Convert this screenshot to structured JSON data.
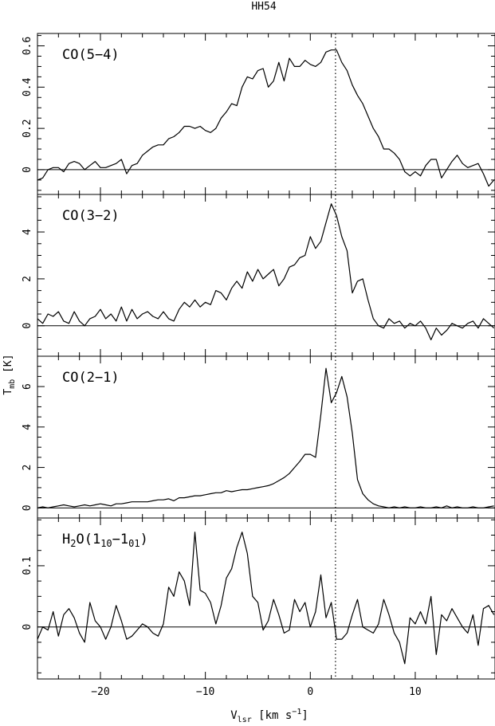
{
  "figure": {
    "title": "HH54",
    "xlabel": "V_lsr [km s^-1]",
    "ylabel": "T_mb [K]",
    "vline": 2.4
  },
  "chart_data": [
    {
      "type": "line",
      "label": "CO(5-4)",
      "xlim": [
        -26,
        17.6
      ],
      "ylim": [
        -0.12,
        0.66
      ],
      "yticks": [
        0,
        0.2,
        0.4,
        0.6
      ],
      "ytick_labels": [
        "0",
        "0.2",
        "0.4",
        "0.6"
      ],
      "x": [
        -26,
        -25.5,
        -25,
        -24.5,
        -24,
        -23.5,
        -23,
        -22.5,
        -22,
        -21.5,
        -21,
        -20.5,
        -20,
        -19.5,
        -19,
        -18.5,
        -18,
        -17.5,
        -17,
        -16.5,
        -16,
        -15.5,
        -15,
        -14.5,
        -14,
        -13.5,
        -13,
        -12.5,
        -12,
        -11.5,
        -11,
        -10.5,
        -10,
        -9.5,
        -9,
        -8.5,
        -8,
        -7.5,
        -7,
        -6.5,
        -6,
        -5.5,
        -5,
        -4.5,
        -4,
        -3.5,
        -3,
        -2.5,
        -2,
        -1.5,
        -1,
        -0.5,
        0,
        0.5,
        1,
        1.5,
        2,
        2.5,
        3,
        3.5,
        4,
        4.5,
        5,
        5.5,
        6,
        6.5,
        7,
        7.5,
        8,
        8.5,
        9,
        9.5,
        10,
        10.5,
        11,
        11.5,
        12,
        12.5,
        13,
        13.5,
        14,
        14.5,
        15,
        15.5,
        16,
        16.5,
        17,
        17.5
      ],
      "values": [
        -0.05,
        -0.04,
        0.0,
        0.01,
        0.01,
        -0.01,
        0.03,
        0.04,
        0.03,
        0.0,
        0.02,
        0.04,
        0.01,
        0.01,
        0.02,
        0.03,
        0.05,
        -0.02,
        0.02,
        0.03,
        0.07,
        0.09,
        0.11,
        0.12,
        0.12,
        0.15,
        0.16,
        0.18,
        0.21,
        0.21,
        0.2,
        0.21,
        0.19,
        0.18,
        0.2,
        0.25,
        0.28,
        0.32,
        0.31,
        0.4,
        0.45,
        0.44,
        0.48,
        0.49,
        0.4,
        0.43,
        0.52,
        0.43,
        0.54,
        0.5,
        0.5,
        0.53,
        0.51,
        0.5,
        0.52,
        0.57,
        0.58,
        0.58,
        0.52,
        0.48,
        0.41,
        0.36,
        0.32,
        0.26,
        0.2,
        0.16,
        0.1,
        0.1,
        0.08,
        0.05,
        -0.01,
        -0.03,
        -0.01,
        -0.03,
        0.02,
        0.05,
        0.05,
        -0.04,
        0.0,
        0.04,
        0.07,
        0.03,
        0.01,
        0.02,
        0.03,
        -0.02,
        -0.08,
        -0.05
      ]
    },
    {
      "type": "line",
      "label": "CO(3-2)",
      "xlim": [
        -26,
        17.6
      ],
      "ylim": [
        -1.3,
        5.6
      ],
      "yticks": [
        0,
        2,
        4
      ],
      "ytick_labels": [
        "0",
        "2",
        "4"
      ],
      "x": [
        -26,
        -25.5,
        -25,
        -24.5,
        -24,
        -23.5,
        -23,
        -22.5,
        -22,
        -21.5,
        -21,
        -20.5,
        -20,
        -19.5,
        -19,
        -18.5,
        -18,
        -17.5,
        -17,
        -16.5,
        -16,
        -15.5,
        -15,
        -14.5,
        -14,
        -13.5,
        -13,
        -12.5,
        -12,
        -11.5,
        -11,
        -10.5,
        -10,
        -9.5,
        -9,
        -8.5,
        -8,
        -7.5,
        -7,
        -6.5,
        -6,
        -5.5,
        -5,
        -4.5,
        -4,
        -3.5,
        -3,
        -2.5,
        -2,
        -1.5,
        -1,
        -0.5,
        0,
        0.5,
        1,
        1.5,
        2,
        2.5,
        3,
        3.5,
        4,
        4.5,
        5,
        5.5,
        6,
        6.5,
        7,
        7.5,
        8,
        8.5,
        9,
        9.5,
        10,
        10.5,
        11,
        11.5,
        12,
        12.5,
        13,
        13.5,
        14,
        14.5,
        15,
        15.5,
        16,
        16.5,
        17,
        17.5
      ],
      "values": [
        0.3,
        0.1,
        0.5,
        0.4,
        0.6,
        0.2,
        0.1,
        0.6,
        0.2,
        0.0,
        0.3,
        0.4,
        0.7,
        0.3,
        0.5,
        0.2,
        0.8,
        0.2,
        0.7,
        0.3,
        0.5,
        0.6,
        0.4,
        0.3,
        0.6,
        0.3,
        0.2,
        0.7,
        1.0,
        0.8,
        1.1,
        0.8,
        1.0,
        0.9,
        1.5,
        1.4,
        1.1,
        1.6,
        1.9,
        1.6,
        2.3,
        1.9,
        2.4,
        2.0,
        2.2,
        2.4,
        1.7,
        2.0,
        2.5,
        2.6,
        2.9,
        3.0,
        3.8,
        3.3,
        3.6,
        4.4,
        5.2,
        4.7,
        3.8,
        3.2,
        1.4,
        1.9,
        2.0,
        1.1,
        0.3,
        0.0,
        -0.1,
        0.3,
        0.1,
        0.2,
        -0.1,
        0.1,
        0.0,
        0.2,
        -0.1,
        -0.6,
        -0.1,
        -0.4,
        -0.2,
        0.1,
        0.0,
        -0.1,
        0.1,
        0.2,
        -0.1,
        0.3,
        0.1,
        -0.1
      ]
    },
    {
      "type": "line",
      "label": "CO(2-1)",
      "xlim": [
        -26,
        17.6
      ],
      "ylim": [
        -0.5,
        7.5
      ],
      "yticks": [
        0,
        2,
        4,
        6
      ],
      "ytick_labels": [
        "0",
        "2",
        "4",
        "6"
      ],
      "x": [
        -26,
        -25.5,
        -25,
        -24.5,
        -24,
        -23.5,
        -23,
        -22.5,
        -22,
        -21.5,
        -21,
        -20.5,
        -20,
        -19.5,
        -19,
        -18.5,
        -18,
        -17.5,
        -17,
        -16.5,
        -16,
        -15.5,
        -15,
        -14.5,
        -14,
        -13.5,
        -13,
        -12.5,
        -12,
        -11.5,
        -11,
        -10.5,
        -10,
        -9.5,
        -9,
        -8.5,
        -8,
        -7.5,
        -7,
        -6.5,
        -6,
        -5.5,
        -5,
        -4.5,
        -4,
        -3.5,
        -3,
        -2.5,
        -2,
        -1.5,
        -1,
        -0.5,
        0,
        0.5,
        1,
        1.5,
        2,
        2.5,
        3,
        3.5,
        4,
        4.5,
        5,
        5.5,
        6,
        6.5,
        7,
        7.5,
        8,
        8.5,
        9,
        9.5,
        10,
        10.5,
        11,
        11.5,
        12,
        12.5,
        13,
        13.5,
        14,
        14.5,
        15,
        15.5,
        16,
        16.5,
        17,
        17.5
      ],
      "values": [
        0.0,
        0.05,
        0.0,
        0.05,
        0.1,
        0.15,
        0.1,
        0.05,
        0.1,
        0.15,
        0.1,
        0.15,
        0.2,
        0.15,
        0.1,
        0.2,
        0.2,
        0.25,
        0.3,
        0.3,
        0.3,
        0.3,
        0.35,
        0.4,
        0.4,
        0.45,
        0.35,
        0.5,
        0.5,
        0.55,
        0.6,
        0.6,
        0.65,
        0.7,
        0.75,
        0.75,
        0.85,
        0.8,
        0.85,
        0.9,
        0.9,
        0.95,
        1.0,
        1.05,
        1.1,
        1.2,
        1.35,
        1.5,
        1.7,
        2.0,
        2.3,
        2.65,
        2.65,
        2.5,
        4.6,
        6.9,
        5.2,
        5.7,
        6.5,
        5.5,
        3.7,
        1.4,
        0.7,
        0.4,
        0.2,
        0.1,
        0.05,
        0.0,
        0.05,
        0.0,
        0.05,
        0.0,
        0.0,
        0.05,
        0.0,
        0.0,
        0.05,
        0.0,
        0.1,
        0.0,
        0.05,
        0.0,
        0.0,
        0.05,
        0.0,
        0.0,
        0.05,
        0.1
      ]
    },
    {
      "type": "line",
      "label": "H2O(110-101)",
      "xlim": [
        -26,
        17.6
      ],
      "ylim": [
        -0.085,
        0.178
      ],
      "yticks": [
        0,
        0.1
      ],
      "ytick_labels": [
        "0",
        "0.1"
      ],
      "x": [
        -26,
        -25.5,
        -25,
        -24.5,
        -24,
        -23.5,
        -23,
        -22.5,
        -22,
        -21.5,
        -21,
        -20.5,
        -20,
        -19.5,
        -19,
        -18.5,
        -18,
        -17.5,
        -17,
        -16.5,
        -16,
        -15.5,
        -15,
        -14.5,
        -14,
        -13.5,
        -13,
        -12.5,
        -12,
        -11.5,
        -11,
        -10.5,
        -10,
        -9.5,
        -9,
        -8.5,
        -8,
        -7.5,
        -7,
        -6.5,
        -6,
        -5.5,
        -5,
        -4.5,
        -4,
        -3.5,
        -3,
        -2.5,
        -2,
        -1.5,
        -1,
        -0.5,
        0,
        0.5,
        1,
        1.5,
        2,
        2.5,
        3,
        3.5,
        4,
        4.5,
        5,
        5.5,
        6,
        6.5,
        7,
        7.5,
        8,
        8.5,
        9,
        9.5,
        10,
        10.5,
        11,
        11.5,
        12,
        12.5,
        13,
        13.5,
        14,
        14.5,
        15,
        15.5,
        16,
        16.5,
        17,
        17.5
      ],
      "values": [
        -0.02,
        0.0,
        -0.005,
        0.025,
        -0.015,
        0.02,
        0.03,
        0.015,
        -0.01,
        -0.025,
        0.04,
        0.01,
        0.0,
        -0.02,
        0.0,
        0.035,
        0.01,
        -0.02,
        -0.015,
        -0.005,
        0.005,
        0.0,
        -0.01,
        -0.015,
        0.005,
        0.065,
        0.05,
        0.09,
        0.075,
        0.035,
        0.155,
        0.06,
        0.055,
        0.04,
        0.005,
        0.035,
        0.08,
        0.095,
        0.13,
        0.155,
        0.12,
        0.05,
        0.04,
        -0.005,
        0.01,
        0.045,
        0.02,
        -0.01,
        -0.005,
        0.045,
        0.025,
        0.04,
        0.0,
        0.025,
        0.085,
        0.015,
        0.04,
        -0.02,
        -0.02,
        -0.01,
        0.02,
        0.045,
        0.0,
        -0.005,
        -0.01,
        0.005,
        0.045,
        0.02,
        -0.01,
        -0.025,
        -0.06,
        0.015,
        0.005,
        0.025,
        0.005,
        0.05,
        -0.045,
        0.02,
        0.01,
        0.03,
        0.015,
        0.0,
        -0.01,
        0.02,
        -0.03,
        0.03,
        0.035,
        0.02
      ]
    }
  ]
}
